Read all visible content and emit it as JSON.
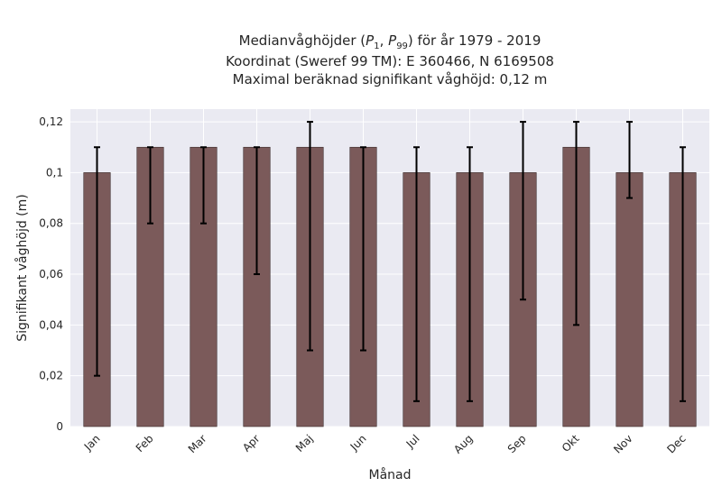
{
  "chart_data": {
    "type": "bar",
    "title_lines": [
      "Medianvåghöjder (P1, P99) för år 1979 - 2019",
      "Koordinat (Sweref 99 TM): E 360466, N 6169508",
      "Maximal beräknad signifikant våghöjd: 0,12 m"
    ],
    "xlabel": "Månad",
    "ylabel": "Signifikant våghöjd (m)",
    "categories": [
      "Jan",
      "Feb",
      "Mar",
      "Apr",
      "Maj",
      "Jun",
      "Jul",
      "Aug",
      "Sep",
      "Okt",
      "Nov",
      "Dec"
    ],
    "values": [
      0.1,
      0.11,
      0.11,
      0.11,
      0.11,
      0.11,
      0.1,
      0.1,
      0.1,
      0.11,
      0.1,
      0.1
    ],
    "error_low": [
      0.02,
      0.08,
      0.08,
      0.06,
      0.03,
      0.03,
      0.01,
      0.01,
      0.05,
      0.04,
      0.09,
      0.01
    ],
    "error_high": [
      0.11,
      0.11,
      0.11,
      0.11,
      0.12,
      0.11,
      0.11,
      0.11,
      0.12,
      0.12,
      0.12,
      0.11
    ],
    "ylim": [
      0,
      0.125
    ],
    "yticks": [
      0,
      0.02,
      0.04,
      0.06,
      0.08,
      0.1,
      0.12
    ],
    "ytick_labels": [
      "0",
      "0,02",
      "0,04",
      "0,06",
      "0,08",
      "0,1",
      "0,12"
    ],
    "grid": true,
    "colors": {
      "bar": "#7b5a5a",
      "bar_edge": "#3a2a2a",
      "error": "#000000",
      "plot_bg": "#eaeaf2",
      "grid": "#ffffff"
    }
  }
}
